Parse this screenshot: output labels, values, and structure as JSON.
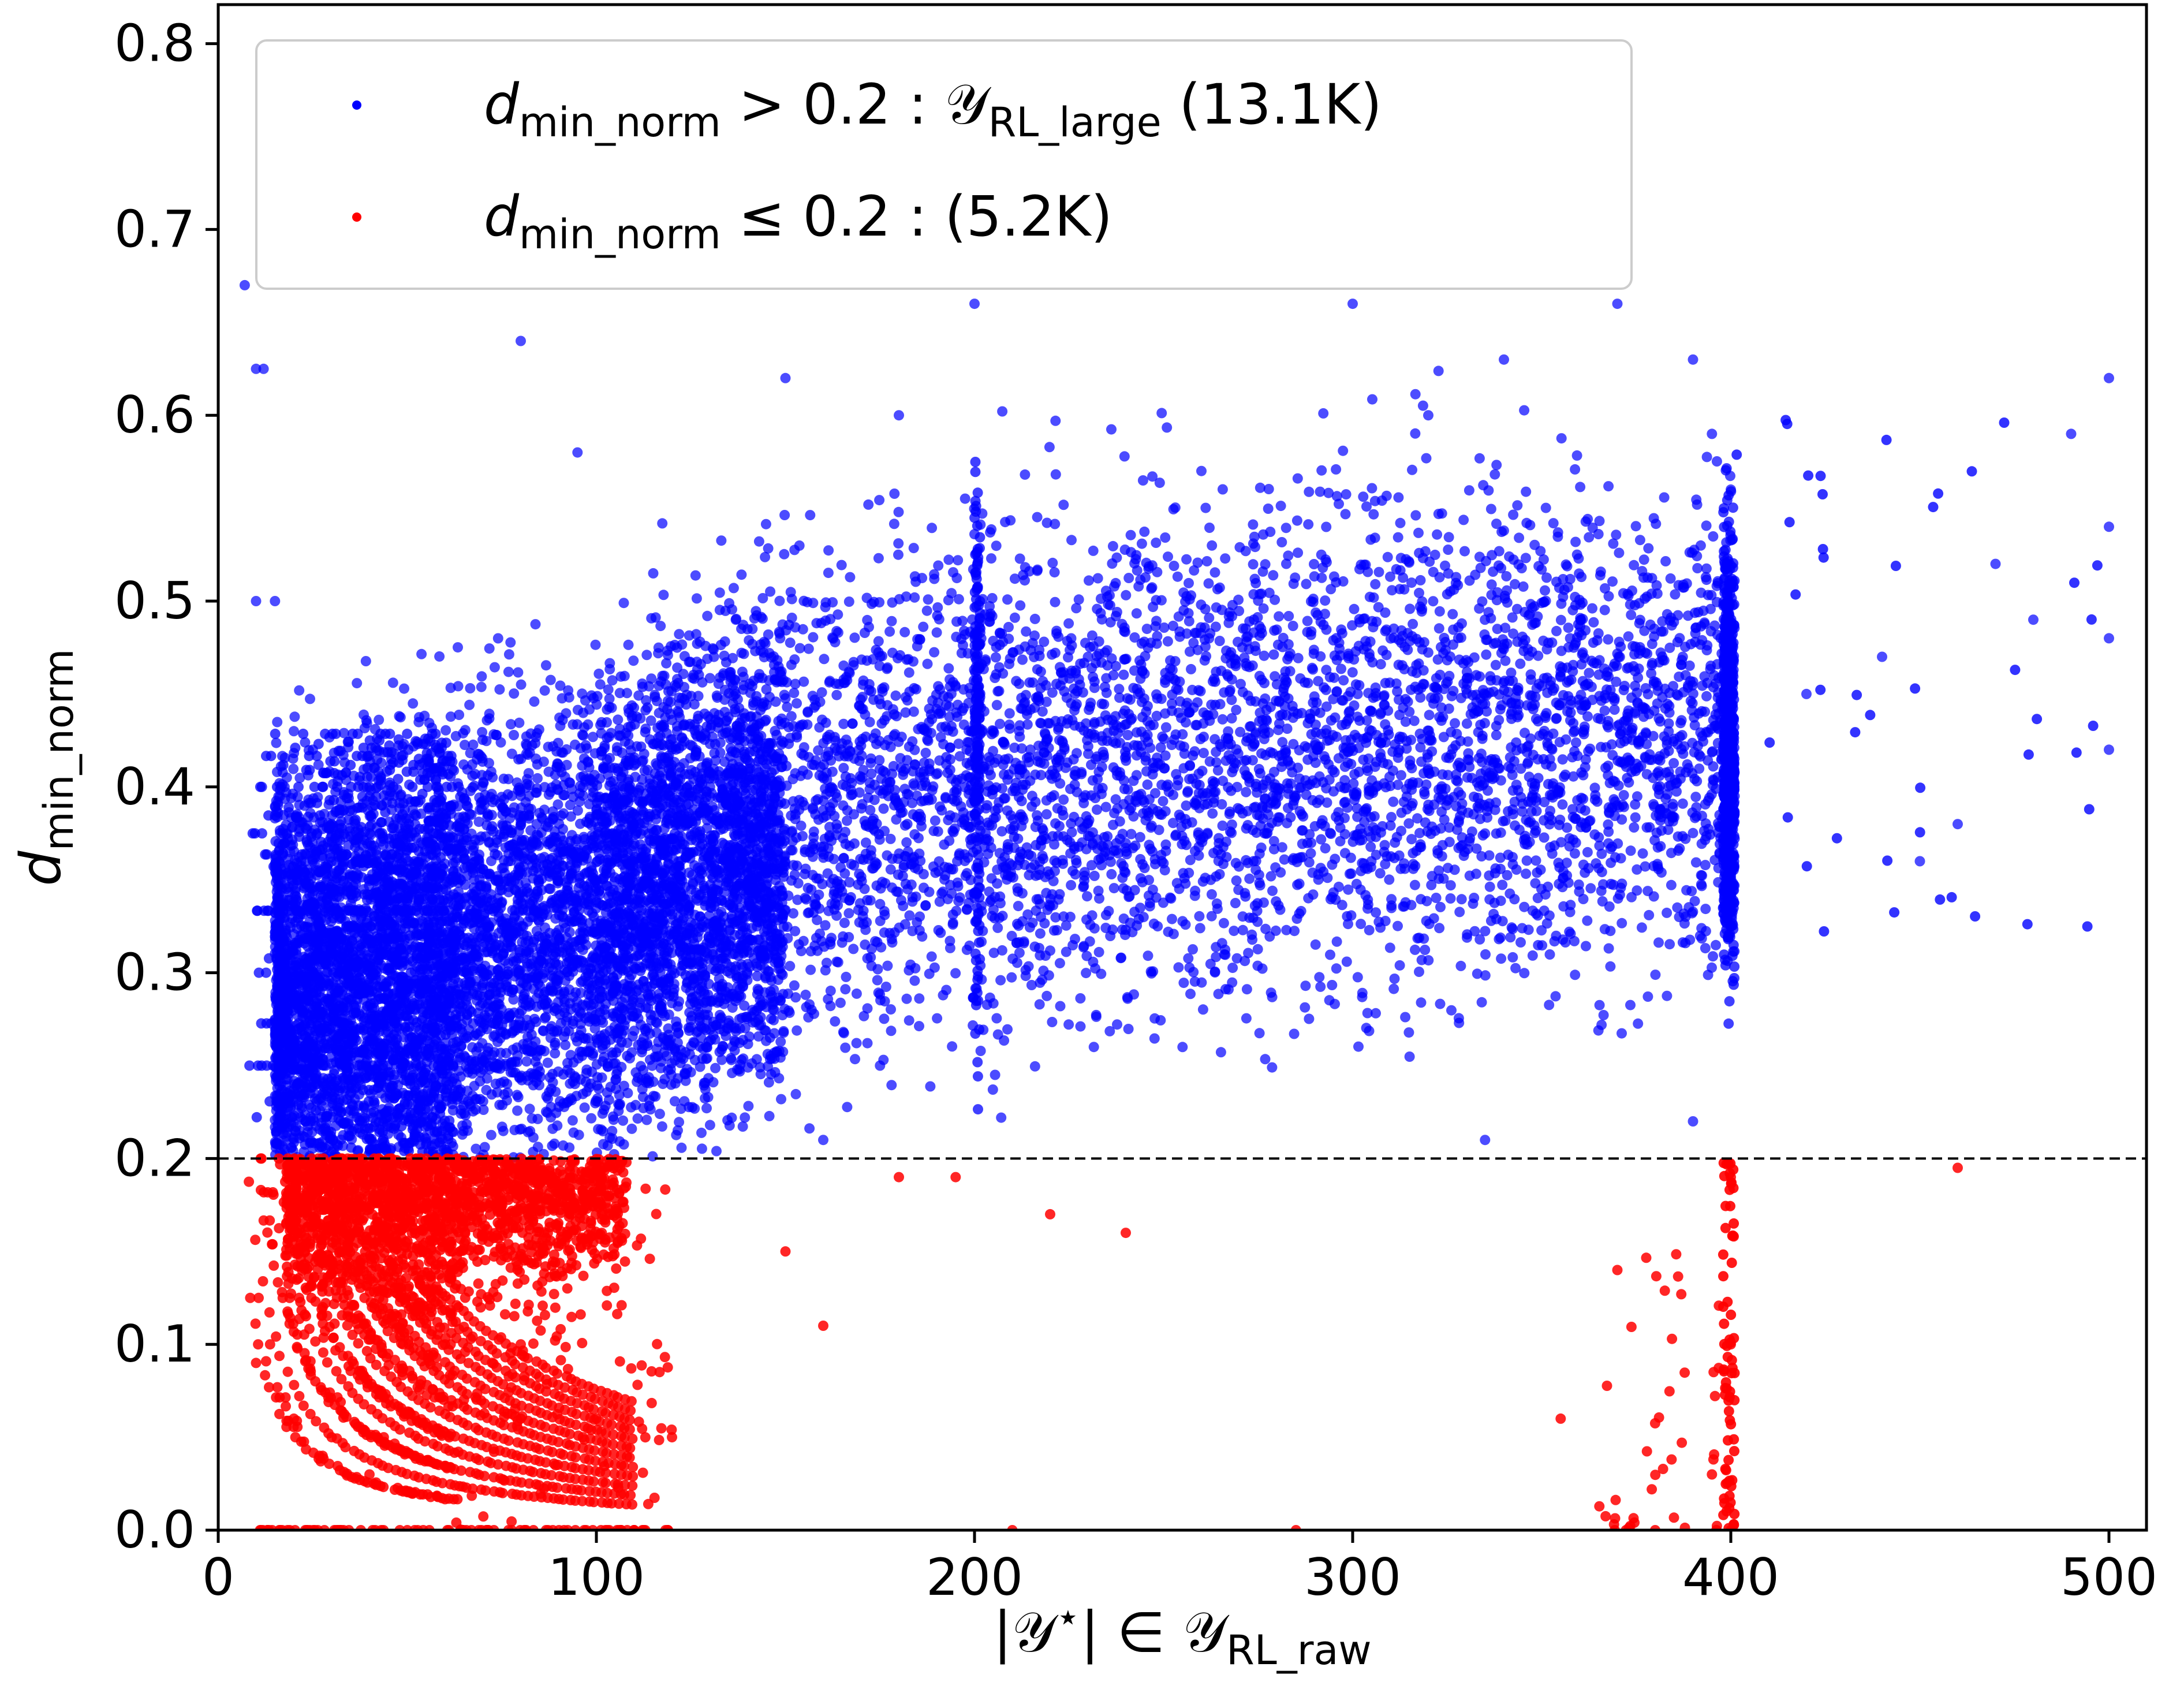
{
  "chart_data": {
    "type": "scatter",
    "xlabel": "|𝒴⋆| ∈ 𝒴RL_raw",
    "ylabel": "dmin_norm",
    "xlim": [
      0,
      510
    ],
    "ylim": [
      0,
      0.82
    ],
    "x_ticks": [
      "0",
      "100",
      "200",
      "300",
      "400",
      "500"
    ],
    "y_ticks": [
      "0.0",
      "0.1",
      "0.2",
      "0.3",
      "0.4",
      "0.5",
      "0.6",
      "0.7",
      "0.8"
    ],
    "threshold": 0.2,
    "threshold_style": "dashed black horizontal line",
    "grid": false,
    "legend_position": "top-left",
    "series": [
      {
        "name": "dmin_norm > 0.2 : 𝒴RL_large (13.1K)",
        "color": "#0000ff",
        "count_label": "13.1K",
        "points_sample": [
          [
            7,
            0.67
          ],
          [
            10,
            0.625
          ],
          [
            12,
            0.625
          ],
          [
            10,
            0.5
          ],
          [
            15,
            0.5
          ],
          [
            20,
            0.43
          ],
          [
            25,
            0.42
          ],
          [
            30,
            0.38
          ],
          [
            40,
            0.37
          ],
          [
            55,
            0.33
          ],
          [
            60,
            0.33
          ],
          [
            80,
            0.64
          ],
          [
            95,
            0.58
          ],
          [
            150,
            0.62
          ],
          [
            180,
            0.6
          ],
          [
            200,
            0.66
          ],
          [
            260,
            0.57
          ],
          [
            300,
            0.66
          ],
          [
            320,
            0.6
          ],
          [
            340,
            0.63
          ],
          [
            370,
            0.66
          ],
          [
            390,
            0.63
          ],
          [
            395,
            0.59
          ],
          [
            400,
            0.56
          ],
          [
            420,
            0.45
          ],
          [
            440,
            0.47
          ],
          [
            450,
            0.36
          ],
          [
            460,
            0.38
          ],
          [
            470,
            0.52
          ],
          [
            480,
            0.49
          ],
          [
            490,
            0.59
          ],
          [
            500,
            0.62
          ],
          [
            500,
            0.54
          ],
          [
            500,
            0.48
          ],
          [
            500,
            0.42
          ],
          [
            390,
            0.22
          ],
          [
            335,
            0.21
          ],
          [
            255,
            0.26
          ],
          [
            175,
            0.25
          ],
          [
            160,
            0.21
          ]
        ]
      },
      {
        "name": "dmin_norm ≤ 0.2 : (5.2K)",
        "color": "#ff0000",
        "count_label": "5.2K",
        "points_sample": [
          [
            10,
            0.09
          ],
          [
            20,
            0.06
          ],
          [
            30,
            0.05
          ],
          [
            40,
            0.03
          ],
          [
            50,
            0.0
          ],
          [
            60,
            0.1
          ],
          [
            80,
            0.1
          ],
          [
            100,
            0.06
          ],
          [
            110,
            0.0
          ],
          [
            120,
            0.05
          ],
          [
            150,
            0.15
          ],
          [
            160,
            0.11
          ],
          [
            180,
            0.19
          ],
          [
            195,
            0.19
          ],
          [
            210,
            0.0
          ],
          [
            220,
            0.17
          ],
          [
            240,
            0.16
          ],
          [
            285,
            0.0
          ],
          [
            355,
            0.06
          ],
          [
            370,
            0.14
          ],
          [
            380,
            0.0
          ],
          [
            395,
            0.03
          ],
          [
            400,
            0.19
          ],
          [
            400,
            0.1
          ],
          [
            400,
            0.0
          ],
          [
            460,
            0.195
          ]
        ]
      }
    ]
  }
}
